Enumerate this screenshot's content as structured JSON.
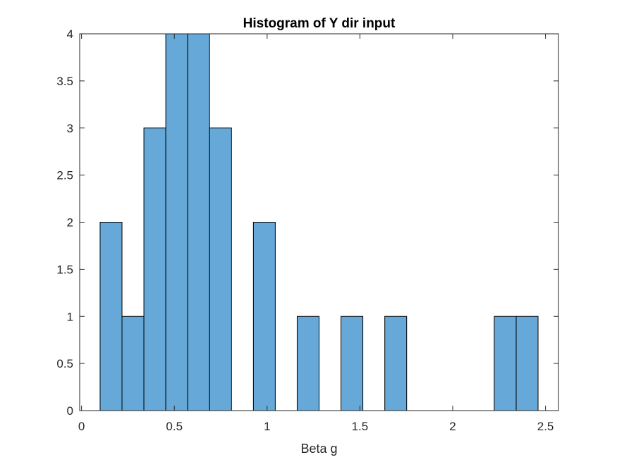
{
  "chart_data": {
    "type": "bar",
    "title": "Histogram of Y dir input",
    "xlabel": "Beta g",
    "ylabel": "",
    "xlim": [
      -0.01,
      2.57
    ],
    "ylim": [
      0,
      4
    ],
    "xticks": [
      0,
      0.5,
      1,
      1.5,
      2,
      2.5
    ],
    "xtick_labels": [
      "0",
      "0.5",
      "1",
      "1.5",
      "2",
      "2.5"
    ],
    "yticks": [
      0,
      0.5,
      1,
      1.5,
      2,
      2.5,
      3,
      3.5,
      4
    ],
    "ytick_labels": [
      "0",
      "0.5",
      "1",
      "1.5",
      "2",
      "2.5",
      "3",
      "3.5",
      "4"
    ],
    "bin_edges": [
      0.1,
      0.218,
      0.336,
      0.454,
      0.572,
      0.69,
      0.808,
      0.926,
      1.044,
      1.162,
      1.28,
      1.398,
      1.516,
      1.634,
      1.752,
      1.87,
      1.988,
      2.106,
      2.224,
      2.342,
      2.46
    ],
    "values": [
      2,
      1,
      3,
      4,
      4,
      3,
      0,
      2,
      0,
      1,
      0,
      1,
      0,
      1,
      0,
      0,
      0,
      0,
      1,
      1
    ],
    "bar_color": "#66a9d9",
    "edge_color": "#000000",
    "grid": false,
    "box": true
  }
}
